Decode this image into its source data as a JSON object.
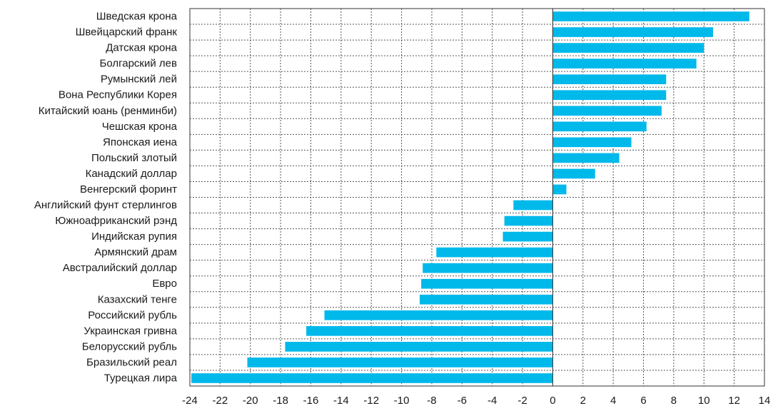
{
  "chart_data": {
    "type": "bar",
    "orientation": "horizontal",
    "categories": [
      "Шведская крона",
      "Швейцарский франк",
      "Датская крона",
      "Болгарский лев",
      "Румынский лей",
      "Вона Республики Корея",
      "Китайский юань (ренминби)",
      "Чешская крона",
      "Японская иена",
      "Польский злотый",
      "Канадский доллар",
      "Венгерский форинт",
      "Английский фунт стерлингов",
      "Южноафриканский рэнд",
      "Индийская рупия",
      "Армянский драм",
      "Австралийский доллар",
      "Евро",
      "Казахский тенге",
      "Российский рубль",
      "Украинская гривна",
      "Белорусский рубль",
      "Бразильский реал",
      "Турецкая лира"
    ],
    "values": [
      13.0,
      10.6,
      10.0,
      9.5,
      7.5,
      7.5,
      7.2,
      6.2,
      5.2,
      4.4,
      2.8,
      0.9,
      -2.6,
      -3.2,
      -3.3,
      -7.7,
      -8.6,
      -8.7,
      -8.8,
      -15.1,
      -16.3,
      -17.7,
      -20.2,
      -23.9
    ],
    "xlim": [
      -24,
      14
    ],
    "xticks": [
      "-24",
      "-22",
      "-20",
      "-18",
      "-16",
      "-14",
      "-12",
      "-10",
      "-8",
      "-6",
      "-4",
      "-2",
      "0",
      "2",
      "4",
      "6",
      "8",
      "10",
      "12",
      "14"
    ],
    "grid": true,
    "bar_color": "#00b9eb",
    "title": "",
    "xlabel": "",
    "ylabel": ""
  }
}
